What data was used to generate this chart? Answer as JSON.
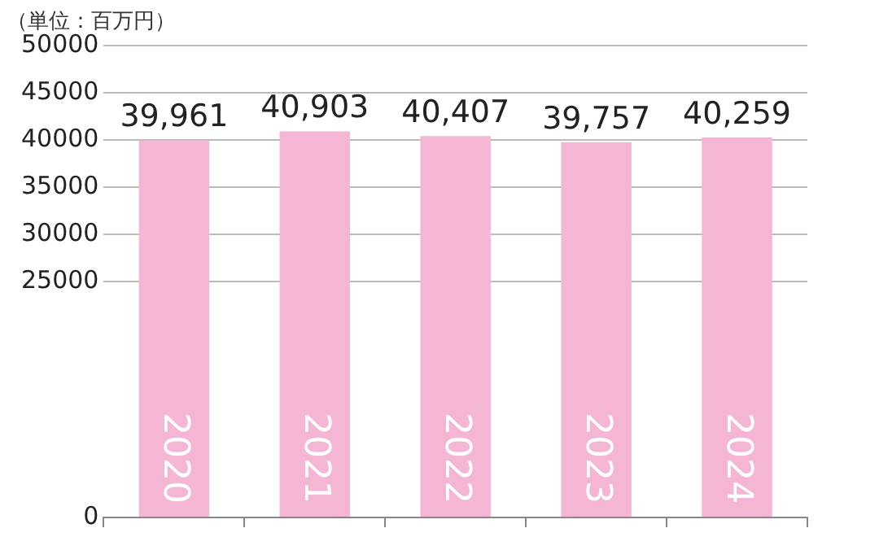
{
  "chart_data": {
    "type": "bar",
    "ylabel": "（単位：百万円）",
    "categories": [
      "2020",
      "2021",
      "2022",
      "2023",
      "2024"
    ],
    "values": [
      39961,
      40903,
      40407,
      39757,
      40259
    ],
    "value_labels": [
      "39,961",
      "40,903",
      "40,407",
      "39,757",
      "40,259"
    ],
    "color": "#f4b6d4",
    "ylim": [
      0,
      50000
    ],
    "yticks": [
      0,
      25000,
      30000,
      35000,
      40000,
      45000,
      50000
    ],
    "grid": "y",
    "legend": false
  }
}
